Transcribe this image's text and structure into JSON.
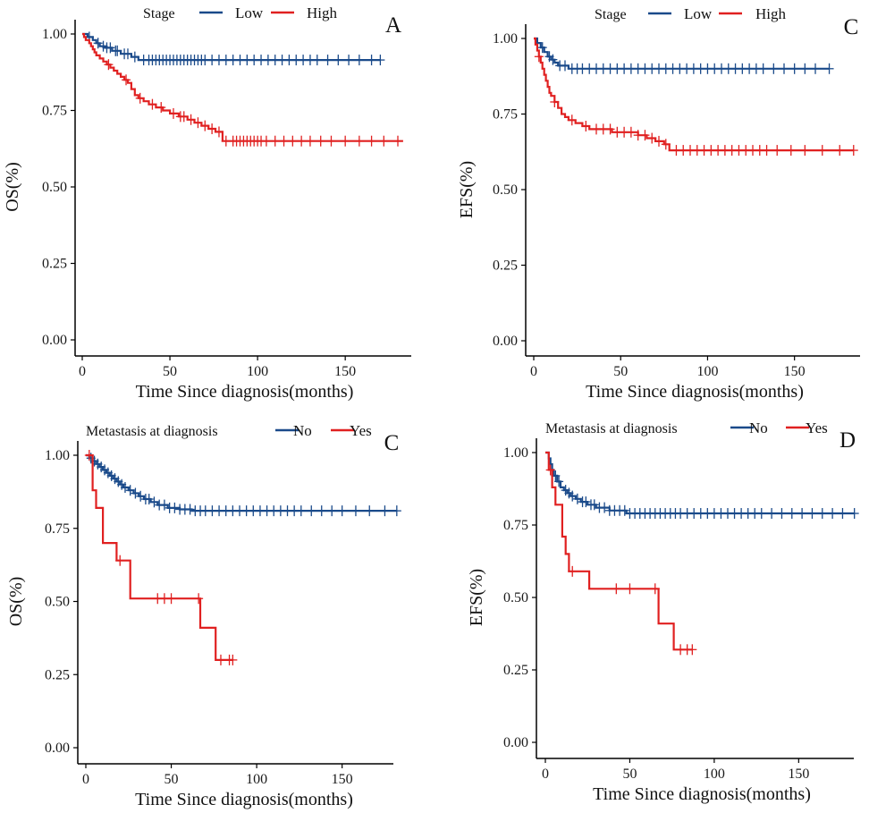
{
  "chart_data": [
    {
      "type": "line",
      "panel_label": "A",
      "xlabel": "Time Since diagnosis(months)",
      "ylabel": "OS(%)",
      "xlim": [
        0,
        180
      ],
      "ylim": [
        0,
        1
      ],
      "xticks": [
        "0",
        "50",
        "100",
        "150"
      ],
      "yticks": [
        "0.00",
        "0.25",
        "0.50",
        "0.75",
        "1.00"
      ],
      "legend": {
        "title": "Stage",
        "position": "top",
        "entries": [
          "Low",
          "High"
        ]
      },
      "series": [
        {
          "name": "Low",
          "color": "#1a4a8a",
          "steps": [
            [
              0,
              1.0
            ],
            [
              3,
              0.99
            ],
            [
              6,
              0.98
            ],
            [
              8,
              0.97
            ],
            [
              10,
              0.96
            ],
            [
              13,
              0.955
            ],
            [
              17,
              0.945
            ],
            [
              22,
              0.935
            ],
            [
              28,
              0.925
            ],
            [
              32,
              0.915
            ],
            [
              170,
              0.915
            ]
          ],
          "censor": [
            4,
            9,
            12,
            14,
            16,
            19,
            20,
            24,
            26,
            30,
            35,
            38,
            40,
            42,
            44,
            46,
            48,
            50,
            52,
            54,
            56,
            58,
            60,
            62,
            64,
            66,
            68,
            70,
            74,
            78,
            82,
            86,
            90,
            94,
            98,
            102,
            106,
            110,
            114,
            118,
            122,
            126,
            130,
            134,
            140,
            146,
            152,
            158,
            165,
            170
          ]
        },
        {
          "name": "High",
          "color": "#e02020",
          "steps": [
            [
              0,
              1.0
            ],
            [
              1,
              0.99
            ],
            [
              2,
              0.98
            ],
            [
              4,
              0.97
            ],
            [
              5,
              0.96
            ],
            [
              6,
              0.95
            ],
            [
              7,
              0.94
            ],
            [
              8,
              0.93
            ],
            [
              10,
              0.92
            ],
            [
              12,
              0.91
            ],
            [
              14,
              0.9
            ],
            [
              16,
              0.89
            ],
            [
              18,
              0.88
            ],
            [
              20,
              0.87
            ],
            [
              22,
              0.86
            ],
            [
              24,
              0.85
            ],
            [
              26,
              0.84
            ],
            [
              28,
              0.82
            ],
            [
              30,
              0.8
            ],
            [
              32,
              0.79
            ],
            [
              35,
              0.78
            ],
            [
              38,
              0.77
            ],
            [
              42,
              0.76
            ],
            [
              46,
              0.75
            ],
            [
              50,
              0.74
            ],
            [
              55,
              0.73
            ],
            [
              60,
              0.72
            ],
            [
              64,
              0.71
            ],
            [
              68,
              0.7
            ],
            [
              72,
              0.69
            ],
            [
              76,
              0.68
            ],
            [
              80,
              0.65
            ],
            [
              183,
              0.65
            ]
          ],
          "censor": [
            15,
            25,
            33,
            40,
            45,
            52,
            56,
            58,
            62,
            66,
            70,
            74,
            78,
            82,
            86,
            88,
            90,
            92,
            94,
            96,
            98,
            100,
            102,
            105,
            110,
            115,
            120,
            125,
            130,
            136,
            142,
            150,
            158,
            165,
            172,
            180
          ]
        }
      ]
    },
    {
      "type": "line",
      "panel_label": "C",
      "xlabel": "Time Since diagnosis(months)",
      "ylabel": "EFS(%)",
      "xlim": [
        0,
        180
      ],
      "ylim": [
        0,
        1
      ],
      "xticks": [
        "0",
        "50",
        "100",
        "150"
      ],
      "yticks": [
        "0.00",
        "0.25",
        "0.50",
        "0.75",
        "1.00"
      ],
      "legend": {
        "title": "Stage",
        "position": "top",
        "entries": [
          "Low",
          "High"
        ]
      },
      "series": [
        {
          "name": "Low",
          "color": "#1a4a8a",
          "steps": [
            [
              0,
              1.0
            ],
            [
              2,
              0.985
            ],
            [
              4,
              0.97
            ],
            [
              6,
              0.955
            ],
            [
              8,
              0.94
            ],
            [
              10,
              0.93
            ],
            [
              12,
              0.92
            ],
            [
              14,
              0.91
            ],
            [
              20,
              0.9
            ],
            [
              170,
              0.9
            ]
          ],
          "censor": [
            5,
            9,
            11,
            15,
            18,
            22,
            25,
            28,
            32,
            36,
            40,
            44,
            48,
            52,
            56,
            60,
            64,
            68,
            72,
            76,
            80,
            84,
            88,
            92,
            96,
            100,
            104,
            108,
            112,
            116,
            120,
            124,
            128,
            132,
            138,
            144,
            150,
            156,
            162,
            170
          ]
        },
        {
          "name": "High",
          "color": "#e02020",
          "steps": [
            [
              0,
              1.0
            ],
            [
              1,
              0.98
            ],
            [
              2,
              0.96
            ],
            [
              3,
              0.94
            ],
            [
              4,
              0.92
            ],
            [
              5,
              0.9
            ],
            [
              6,
              0.88
            ],
            [
              7,
              0.86
            ],
            [
              8,
              0.84
            ],
            [
              9,
              0.82
            ],
            [
              10,
              0.81
            ],
            [
              12,
              0.79
            ],
            [
              14,
              0.77
            ],
            [
              16,
              0.75
            ],
            [
              18,
              0.74
            ],
            [
              20,
              0.73
            ],
            [
              24,
              0.72
            ],
            [
              28,
              0.71
            ],
            [
              32,
              0.7
            ],
            [
              45,
              0.69
            ],
            [
              60,
              0.68
            ],
            [
              65,
              0.67
            ],
            [
              70,
              0.66
            ],
            [
              75,
              0.65
            ],
            [
              78,
              0.63
            ],
            [
              184,
              0.63
            ]
          ],
          "censor": [
            3,
            12,
            22,
            30,
            36,
            40,
            44,
            48,
            52,
            56,
            60,
            64,
            68,
            72,
            76,
            82,
            86,
            90,
            94,
            98,
            102,
            106,
            110,
            114,
            118,
            122,
            126,
            130,
            134,
            140,
            148,
            156,
            166,
            176,
            184
          ]
        }
      ]
    },
    {
      "type": "line",
      "panel_label": "C",
      "xlabel": "Time Since diagnosis(months)",
      "ylabel": "OS(%)",
      "xlim": [
        0,
        180
      ],
      "ylim": [
        0,
        1
      ],
      "xticks": [
        "0",
        "50",
        "100",
        "150"
      ],
      "yticks": [
        "0.00",
        "0.25",
        "0.50",
        "0.75",
        "1.00"
      ],
      "legend": {
        "title": "Metastasis at diagnosis",
        "position": "top",
        "entries": [
          "No",
          "Yes"
        ]
      },
      "series": [
        {
          "name": "No",
          "color": "#1a4a8a",
          "steps": [
            [
              0,
              1.0
            ],
            [
              2,
              0.99
            ],
            [
              4,
              0.98
            ],
            [
              6,
              0.97
            ],
            [
              8,
              0.96
            ],
            [
              10,
              0.95
            ],
            [
              12,
              0.94
            ],
            [
              14,
              0.93
            ],
            [
              16,
              0.92
            ],
            [
              18,
              0.91
            ],
            [
              20,
              0.9
            ],
            [
              22,
              0.89
            ],
            [
              25,
              0.88
            ],
            [
              28,
              0.87
            ],
            [
              31,
              0.86
            ],
            [
              34,
              0.85
            ],
            [
              38,
              0.84
            ],
            [
              42,
              0.83
            ],
            [
              48,
              0.82
            ],
            [
              55,
              0.815
            ],
            [
              62,
              0.81
            ],
            [
              182,
              0.81
            ]
          ],
          "censor": [
            3,
            5,
            7,
            9,
            11,
            13,
            15,
            17,
            19,
            21,
            23,
            26,
            29,
            32,
            35,
            37,
            40,
            43,
            46,
            49,
            52,
            55,
            58,
            61,
            64,
            67,
            70,
            74,
            78,
            82,
            86,
            90,
            94,
            98,
            102,
            106,
            110,
            114,
            118,
            122,
            126,
            132,
            138,
            144,
            150,
            158,
            166,
            175,
            182
          ]
        },
        {
          "name": "Yes",
          "color": "#e02020",
          "steps": [
            [
              0,
              1.0
            ],
            [
              4,
              0.88
            ],
            [
              6,
              0.82
            ],
            [
              10,
              0.7
            ],
            [
              18,
              0.64
            ],
            [
              26,
              0.51
            ],
            [
              67,
              0.41
            ],
            [
              76,
              0.3
            ],
            [
              86,
              0.3
            ]
          ],
          "censor": [
            2,
            20,
            42,
            46,
            50,
            66,
            79,
            84,
            86
          ]
        }
      ]
    },
    {
      "type": "line",
      "panel_label": "D",
      "xlabel": "Time Since diagnosis(months)",
      "ylabel": "EFS(%)",
      "xlim": [
        0,
        180
      ],
      "ylim": [
        0,
        1
      ],
      "xticks": [
        "0",
        "50",
        "100",
        "150"
      ],
      "yticks": [
        "0.00",
        "0.25",
        "0.50",
        "0.75",
        "1.00"
      ],
      "legend": {
        "title": "Metastasis at diagnosis",
        "position": "top",
        "entries": [
          "No",
          "Yes"
        ]
      },
      "series": [
        {
          "name": "No",
          "color": "#1a4a8a",
          "steps": [
            [
              0,
              1.0
            ],
            [
              2,
              0.98
            ],
            [
              3,
              0.96
            ],
            [
              4,
              0.94
            ],
            [
              5,
              0.92
            ],
            [
              7,
              0.9
            ],
            [
              9,
              0.88
            ],
            [
              11,
              0.87
            ],
            [
              13,
              0.86
            ],
            [
              15,
              0.85
            ],
            [
              18,
              0.84
            ],
            [
              21,
              0.83
            ],
            [
              25,
              0.82
            ],
            [
              30,
              0.81
            ],
            [
              38,
              0.8
            ],
            [
              48,
              0.79
            ],
            [
              183,
              0.79
            ]
          ],
          "censor": [
            6,
            8,
            12,
            14,
            16,
            19,
            22,
            24,
            27,
            29,
            32,
            35,
            38,
            41,
            44,
            47,
            50,
            53,
            56,
            59,
            62,
            65,
            68,
            71,
            74,
            77,
            80,
            84,
            88,
            92,
            96,
            100,
            104,
            108,
            112,
            116,
            120,
            124,
            128,
            134,
            140,
            146,
            152,
            158,
            164,
            170,
            176,
            183
          ]
        },
        {
          "name": "Yes",
          "color": "#e02020",
          "steps": [
            [
              0,
              1.0
            ],
            [
              2,
              0.94
            ],
            [
              4,
              0.88
            ],
            [
              6,
              0.82
            ],
            [
              10,
              0.71
            ],
            [
              12,
              0.65
            ],
            [
              14,
              0.59
            ],
            [
              26,
              0.53
            ],
            [
              67,
              0.41
            ],
            [
              76,
              0.32
            ],
            [
              87,
              0.32
            ]
          ],
          "censor": [
            3,
            16,
            42,
            50,
            65,
            80,
            84,
            87
          ]
        }
      ]
    }
  ]
}
